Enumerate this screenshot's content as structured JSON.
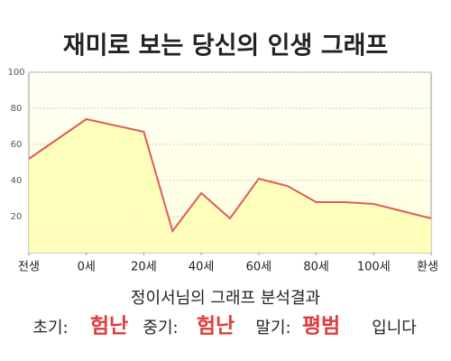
{
  "chart_data": {
    "type": "area",
    "title": "재미로 보는 당신의 인생 그래프",
    "x": [
      -20,
      0,
      20,
      30,
      40,
      50,
      60,
      70,
      80,
      90,
      100,
      120
    ],
    "values": [
      52,
      74,
      67,
      12,
      33,
      19,
      41,
      37,
      28,
      28,
      27,
      19
    ],
    "color": "#e05a5a",
    "fill": "#ffffb4",
    "xlim": [
      -20,
      120
    ],
    "xticks": [
      {
        "value": -20,
        "label": "전생"
      },
      {
        "value": 0,
        "label": "0세"
      },
      {
        "value": 20,
        "label": "20세"
      },
      {
        "value": 40,
        "label": "40세"
      },
      {
        "value": 60,
        "label": "60세"
      },
      {
        "value": 80,
        "label": "80세"
      },
      {
        "value": 100,
        "label": "100세"
      },
      {
        "value": 120,
        "label": "환생"
      }
    ],
    "ylim": [
      0,
      100
    ],
    "yticks": [
      20,
      40,
      60,
      80,
      100
    ],
    "grid": true
  },
  "result": {
    "heading": "정이서님의 그래프 분석결과",
    "items": [
      {
        "label": "초기:",
        "value": "험난"
      },
      {
        "label": "중기:",
        "value": "험난"
      },
      {
        "label": "말기:",
        "value": "평범"
      }
    ],
    "suffix": "입니다"
  }
}
